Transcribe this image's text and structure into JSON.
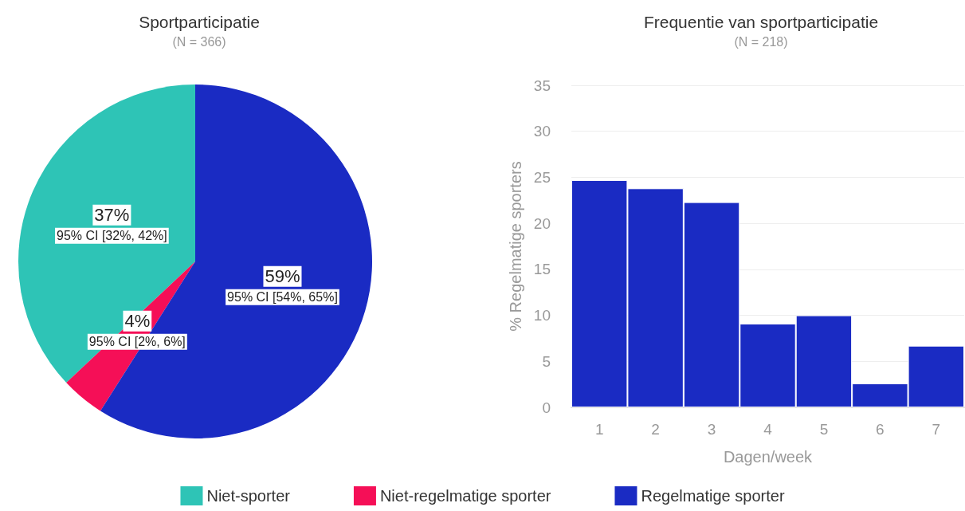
{
  "chart_data": [
    {
      "type": "pie",
      "title": "Sportparticipatie",
      "subtitle": "(N = 366)",
      "categories": [
        "Niet-sporter",
        "Niet-regelmatige sporter",
        "Regelmatige sporter"
      ],
      "values": [
        37,
        4,
        59
      ],
      "colors": [
        "#2ec4b6",
        "#f50f57",
        "#1a2bc3"
      ],
      "value_labels": [
        "37%\n95% CI [32%, 42%]",
        "4%\n95% CI [2%, 6%]",
        "59%\n95% CI [54%, 65%]"
      ],
      "legend": "bottom"
    },
    {
      "type": "bar",
      "title": "Frequentie van sportparticipatie",
      "subtitle": "(N = 218)",
      "xlabel": "Dagen/week",
      "ylabel": "% Regelmatige sporters",
      "categories": [
        "1",
        "2",
        "3",
        "4",
        "5",
        "6",
        "7"
      ],
      "values": [
        24.7,
        23.8,
        22.3,
        9.1,
        10.0,
        2.6,
        6.7
      ],
      "color": "#1a2bc3",
      "ylim": [
        0,
        35
      ],
      "yticks": [
        0,
        5,
        10,
        15,
        20,
        25,
        30,
        35
      ],
      "grid": "y",
      "legend": false
    }
  ]
}
